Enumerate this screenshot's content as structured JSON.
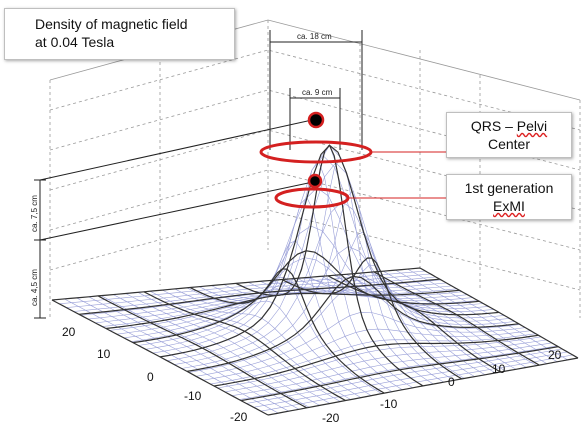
{
  "title": {
    "line1": "Density of magnetic field",
    "line2": "at 0.04 Tesla"
  },
  "callouts": {
    "qrs": {
      "line1_a": "QRS",
      "line1_sep": " – ",
      "line1_b": "Pelvi",
      "line2": "Center"
    },
    "exmi": {
      "line1": "1st generation",
      "line2": "ExMI"
    }
  },
  "dimensions": {
    "width_outer": "ca. 18 cm",
    "width_inner": "ca. 9 cm",
    "height_outer": "ca. 7,5 cm",
    "height_inner": "ca. 4,5 cm"
  },
  "axis_ticks": {
    "left": [
      "20",
      "10",
      "0",
      "-10",
      "-20"
    ],
    "right": [
      "-20",
      "-10",
      "0",
      "10",
      "20"
    ]
  },
  "colors": {
    "accent_red": "#d42020",
    "marker_fill": "#000000",
    "mesh_dark": "#333333",
    "mesh_light": "#9aa0d8"
  }
}
